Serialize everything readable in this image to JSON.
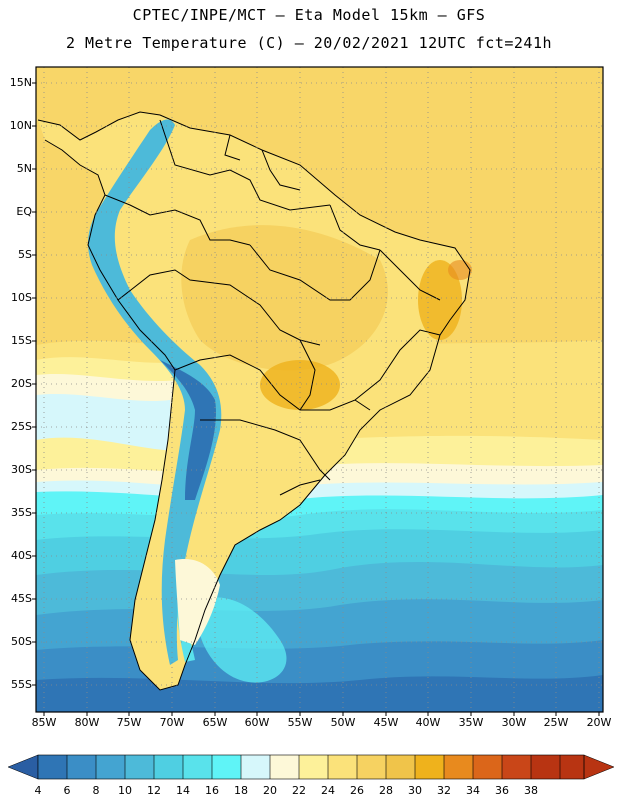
{
  "header": {
    "line1": "CPTEC/INPE/MCT –  Eta Model 15km – GFS",
    "line2": "2 Metre Temperature (C) – 20/02/2021 12UTC fct=241h"
  },
  "map": {
    "lat_labels": [
      "15N",
      "10N",
      "5N",
      "EQ",
      "5S",
      "10S",
      "15S",
      "20S",
      "25S",
      "30S",
      "35S",
      "40S",
      "45S",
      "50S",
      "55S"
    ],
    "lon_labels": [
      "85W",
      "80W",
      "75W",
      "70W",
      "65W",
      "60W",
      "55W",
      "50W",
      "45W",
      "40W",
      "35W",
      "30W",
      "25W",
      "20W"
    ]
  },
  "colorbar": {
    "labels": [
      "4",
      "6",
      "8",
      "10",
      "12",
      "14",
      "16",
      "18",
      "20",
      "22",
      "24",
      "26",
      "28",
      "30",
      "32",
      "34",
      "36",
      "38"
    ],
    "colors": [
      "#2a5ea3",
      "#2f75b5",
      "#3b8ec6",
      "#44a4d1",
      "#4dbad9",
      "#4fcfe2",
      "#59e2eb",
      "#5ff4f7",
      "#d6f7fb",
      "#fdf8d8",
      "#fdf19a",
      "#fbe27a",
      "#f6d261",
      "#f0c44a",
      "#efb21c",
      "#e88a1e",
      "#db661a",
      "#c94618",
      "#b83412"
    ]
  }
}
